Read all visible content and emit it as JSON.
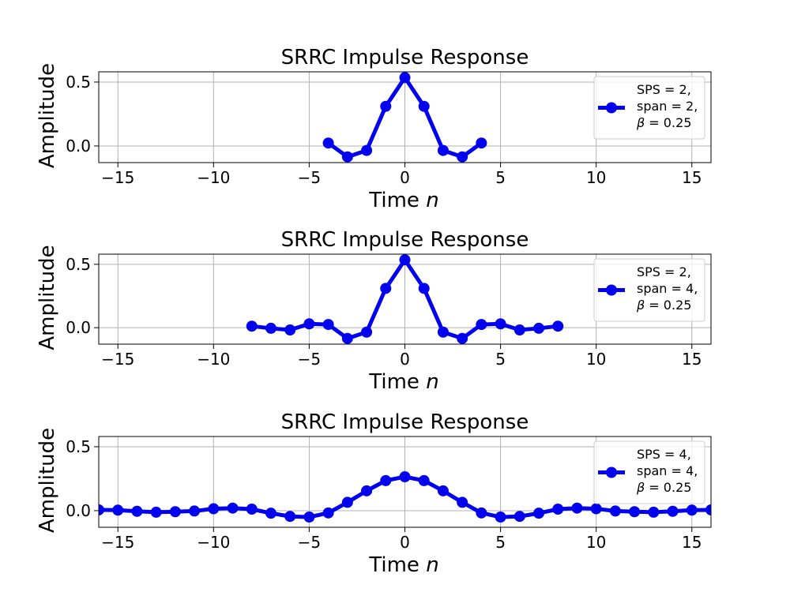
{
  "chart_data": [
    {
      "type": "line",
      "title": "SRRC Impulse Response",
      "xlabel": "Time",
      "xlabel_var": "n",
      "ylabel": "Amplitude",
      "xlim": [
        -16,
        16
      ],
      "ylim": [
        -0.13,
        0.58
      ],
      "xticks": [
        -15,
        -10,
        -5,
        0,
        5,
        10,
        15
      ],
      "xtick_labels": [
        "−15",
        "−10",
        "−5",
        "0",
        "5",
        "10",
        "15"
      ],
      "yticks": [
        0.0,
        0.5
      ],
      "ytick_labels": [
        "0.0",
        "0.5"
      ],
      "grid": true,
      "legend": {
        "position": "right",
        "lines": [
          "SPS = 2,",
          "span = 2,",
          "= 0.25"
        ],
        "symbol": "β"
      },
      "color": "#0000ee",
      "series": [
        {
          "x": [
            -4,
            -3,
            -2,
            -1,
            0,
            1,
            2,
            3,
            4
          ],
          "y": [
            0.023,
            -0.085,
            -0.035,
            0.31,
            0.535,
            0.31,
            -0.035,
            -0.085,
            0.023
          ]
        }
      ]
    },
    {
      "type": "line",
      "title": "SRRC Impulse Response",
      "xlabel": "Time",
      "xlabel_var": "n",
      "ylabel": "Amplitude",
      "xlim": [
        -16,
        16
      ],
      "ylim": [
        -0.13,
        0.58
      ],
      "xticks": [
        -15,
        -10,
        -5,
        0,
        5,
        10,
        15
      ],
      "xtick_labels": [
        "−15",
        "−10",
        "−5",
        "0",
        "5",
        "10",
        "15"
      ],
      "yticks": [
        0.0,
        0.5
      ],
      "ytick_labels": [
        "0.0",
        "0.5"
      ],
      "grid": true,
      "legend": {
        "position": "right",
        "lines": [
          "SPS = 2,",
          "span = 4,",
          "= 0.25"
        ],
        "symbol": "β"
      },
      "color": "#0000ee",
      "series": [
        {
          "x": [
            -8,
            -7,
            -6,
            -5,
            -4,
            -3,
            -2,
            -1,
            0,
            1,
            2,
            3,
            4,
            5,
            6,
            7,
            8
          ],
          "y": [
            0.012,
            -0.005,
            -0.018,
            0.03,
            0.025,
            -0.085,
            -0.035,
            0.31,
            0.535,
            0.31,
            -0.035,
            -0.085,
            0.025,
            0.03,
            -0.018,
            -0.005,
            0.012
          ]
        }
      ]
    },
    {
      "type": "line",
      "title": "SRRC Impulse Response",
      "xlabel": "Time",
      "xlabel_var": "n",
      "ylabel": "Amplitude",
      "xlim": [
        -16,
        16
      ],
      "ylim": [
        -0.13,
        0.58
      ],
      "xticks": [
        -15,
        -10,
        -5,
        0,
        5,
        10,
        15
      ],
      "xtick_labels": [
        "−15",
        "−10",
        "−5",
        "0",
        "5",
        "10",
        "15"
      ],
      "yticks": [
        0.0,
        0.5
      ],
      "ytick_labels": [
        "0.0",
        "0.5"
      ],
      "grid": true,
      "legend": {
        "position": "right",
        "lines": [
          "SPS = 4,",
          "span = 4,",
          "= 0.25"
        ],
        "symbol": "β"
      },
      "color": "#0000ee",
      "series": [
        {
          "x": [
            -16,
            -15,
            -14,
            -13,
            -12,
            -11,
            -10,
            -9,
            -8,
            -7,
            -6,
            -5,
            -4,
            -3,
            -2,
            -1,
            0,
            1,
            2,
            3,
            4,
            5,
            6,
            7,
            8,
            9,
            10,
            11,
            12,
            13,
            14,
            15,
            16
          ],
          "y": [
            0.006,
            0.004,
            -0.005,
            -0.012,
            -0.008,
            -0.003,
            0.015,
            0.02,
            0.012,
            -0.02,
            -0.045,
            -0.05,
            -0.018,
            0.065,
            0.155,
            0.235,
            0.265,
            0.235,
            0.155,
            0.065,
            -0.018,
            -0.05,
            -0.045,
            -0.02,
            0.012,
            0.02,
            0.015,
            -0.003,
            -0.008,
            -0.012,
            -0.005,
            0.004,
            0.006
          ]
        }
      ]
    }
  ]
}
